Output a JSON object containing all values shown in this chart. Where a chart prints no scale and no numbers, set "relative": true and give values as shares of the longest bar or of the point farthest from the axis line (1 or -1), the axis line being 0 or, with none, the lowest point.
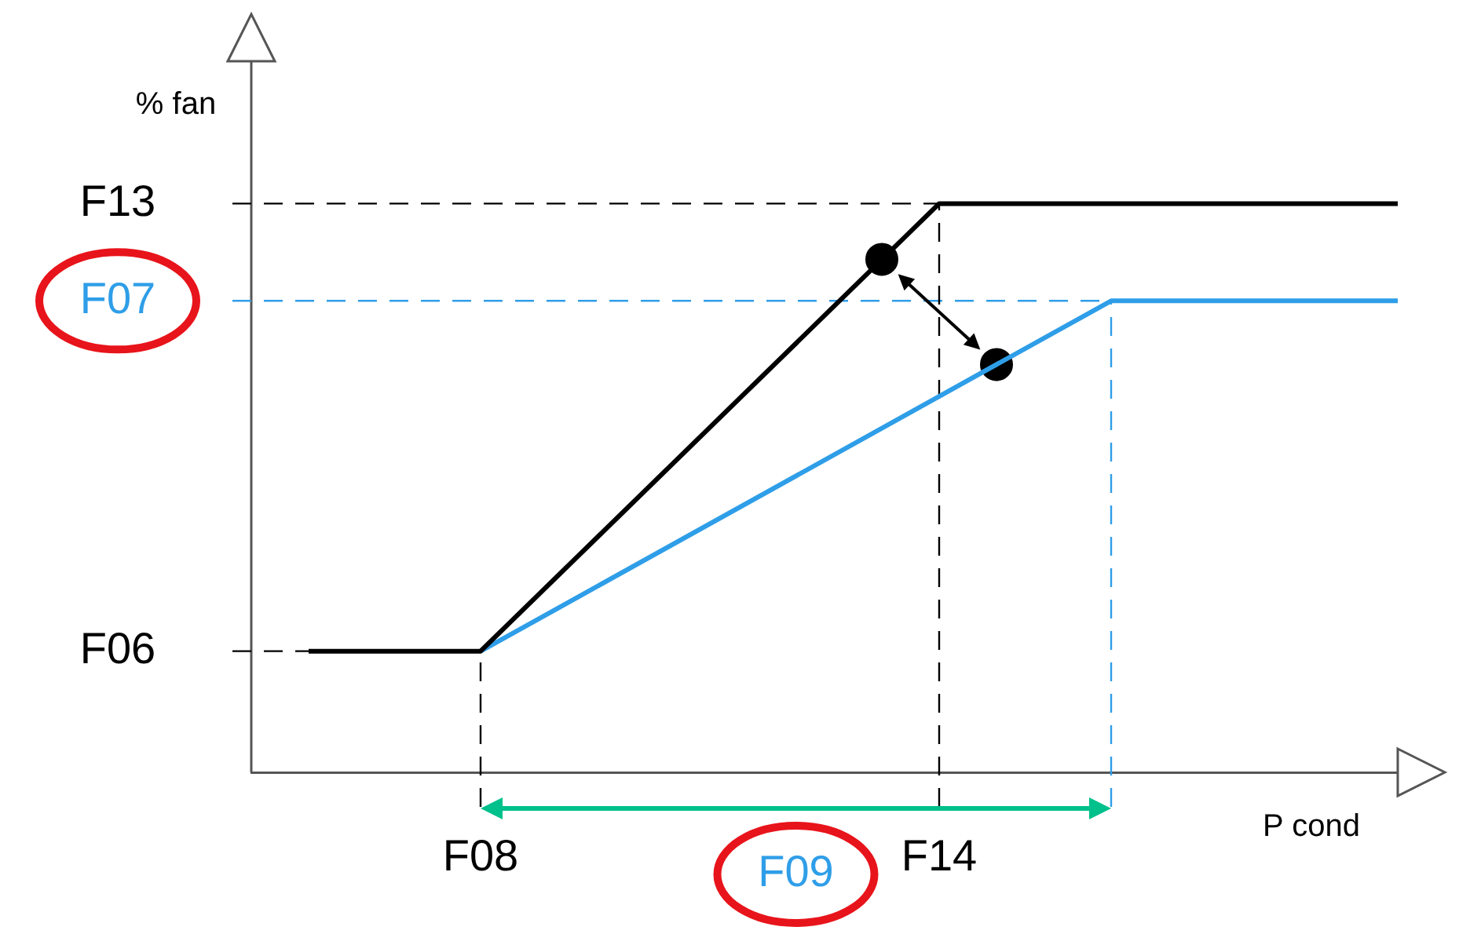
{
  "chart_data": {
    "type": "line",
    "relative": true,
    "ylabel": "% fan",
    "xlabel": "P cond",
    "annotations": [
      "F09"
    ],
    "grid": false,
    "legend": false,
    "marker": "none",
    "line_style": "solid",
    "categories": [
      null,
      null,
      null,
      null,
      "F08",
      null,
      null,
      null,
      null,
      null,
      null,
      null,
      "F14",
      null,
      null,
      null,
      null,
      null,
      null,
      null,
      null
    ],
    "series": [
      {
        "color": "#000000",
        "values": [
          null,
          0.213,
          null,
          null,
          0.213,
          null,
          null,
          null,
          null,
          null,
          null,
          null,
          1,
          null,
          null,
          null,
          null,
          null,
          null,
          null,
          1
        ]
      },
      {
        "color": "#2f9ee8",
        "values": [
          null,
          null,
          null,
          null,
          0.213,
          null,
          null,
          null,
          null,
          null,
          null,
          null,
          null,
          null,
          null,
          0.829,
          null,
          null,
          null,
          null,
          0.829
        ]
      },
      {
        "type": "scatter",
        "color": "#000000",
        "marker": "circle",
        "values": [
          null,
          null,
          null,
          null,
          null,
          null,
          null,
          null,
          null,
          null,
          null,
          0.902,
          null,
          0.717,
          null,
          null,
          null,
          null,
          null,
          null,
          null
        ]
      }
    ],
    "ref_lines": [
      {
        "axis": "y",
        "value": 1,
        "label": "F13",
        "color": "#000000",
        "line_style": "dashed"
      },
      {
        "axis": "y",
        "value": 0.829,
        "label": "F07",
        "color": "#2f9ee8",
        "line_style": "dashed"
      },
      {
        "axis": "y",
        "value": 0.213,
        "label": "F06",
        "color": "#000000",
        "line_style": "dashed"
      },
      {
        "axis": "x",
        "value": "F08",
        "color": "#000000",
        "line_style": "dashed"
      },
      {
        "axis": "x",
        "value": "F14",
        "color": "#000000",
        "line_style": "dashed"
      }
    ]
  }
}
